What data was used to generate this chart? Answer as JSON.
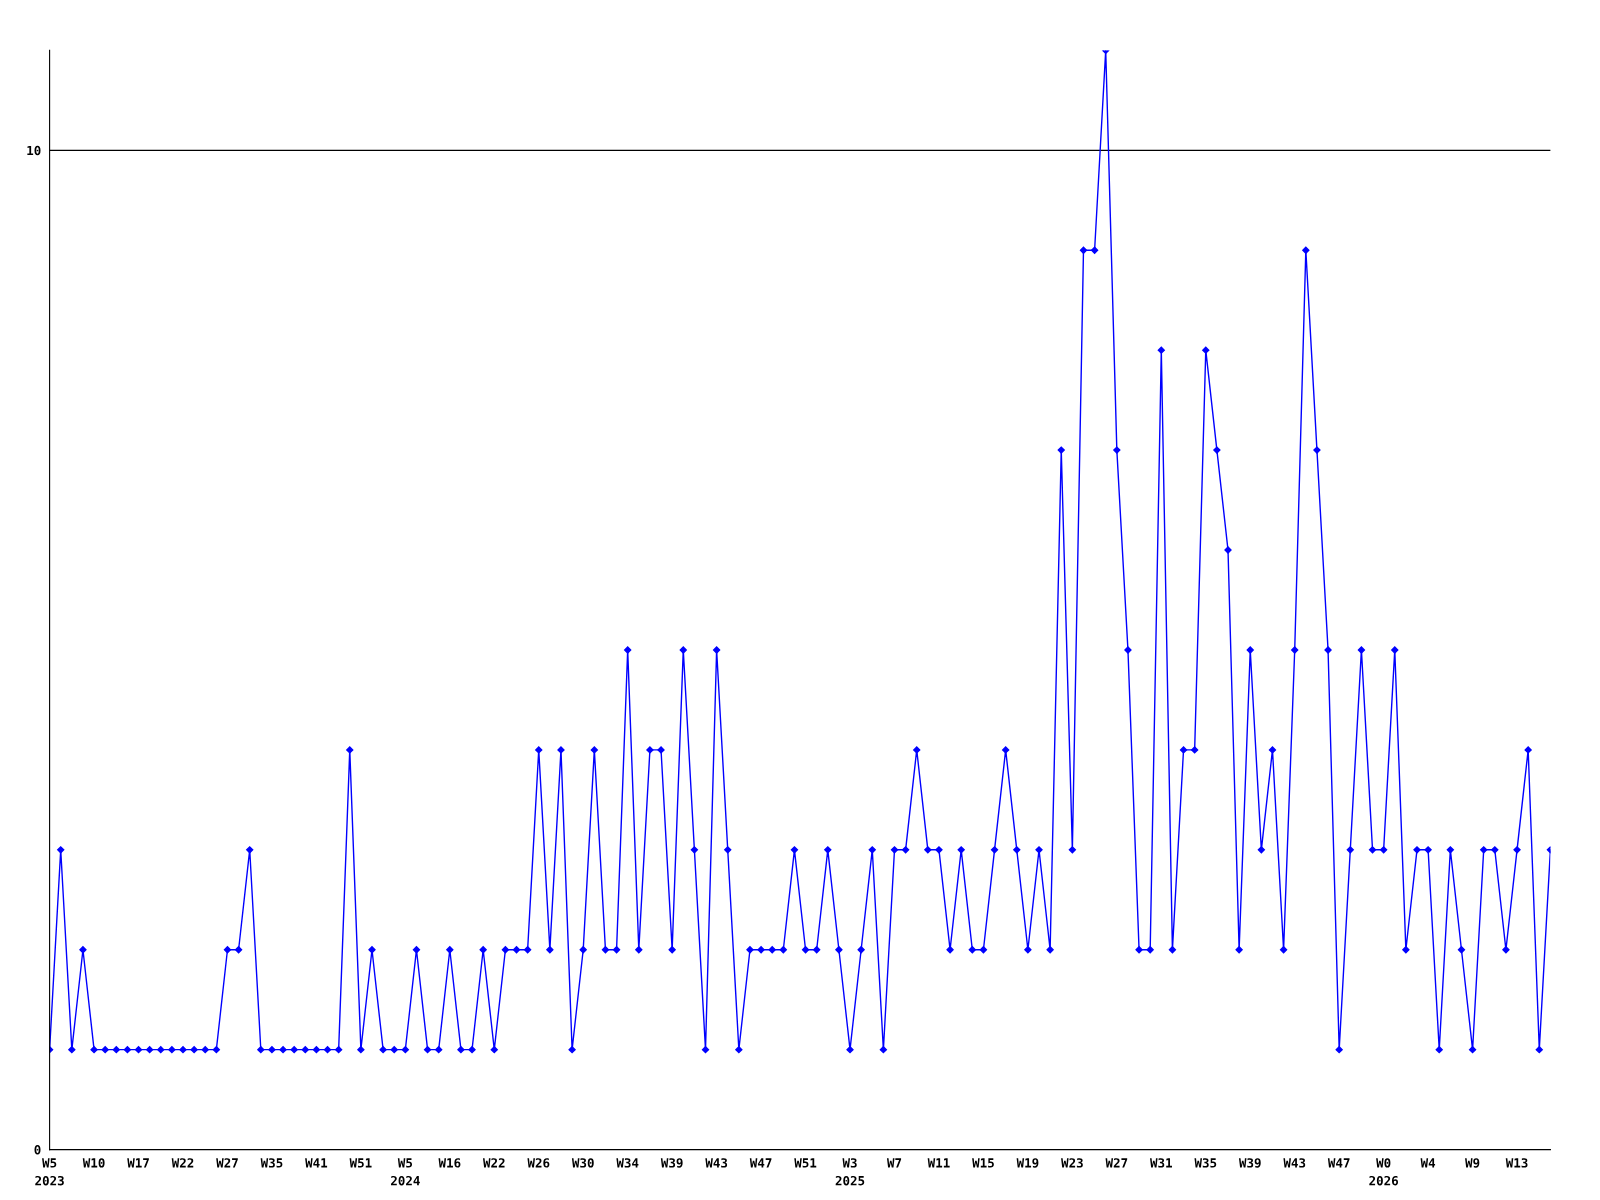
{
  "chart_data": {
    "type": "line",
    "categories": [
      "W5\n2023",
      null,
      null,
      null,
      "W10",
      null,
      null,
      null,
      "W17",
      null,
      null,
      null,
      "W22",
      null,
      null,
      null,
      "W27",
      null,
      null,
      null,
      "W35",
      null,
      null,
      null,
      "W41",
      null,
      null,
      null,
      "W51",
      null,
      null,
      null,
      "W5\n2024",
      null,
      null,
      null,
      "W16",
      null,
      null,
      null,
      "W22",
      null,
      null,
      null,
      "W26",
      null,
      null,
      null,
      "W30",
      null,
      null,
      null,
      "W34",
      null,
      null,
      null,
      "W39",
      null,
      null,
      null,
      "W43",
      null,
      null,
      null,
      "W47",
      null,
      null,
      null,
      "W51",
      null,
      null,
      null,
      "W3\n2025",
      null,
      null,
      null,
      "W7",
      null,
      null,
      null,
      "W11",
      null,
      null,
      null,
      "W15",
      null,
      null,
      null,
      "W19",
      null,
      null,
      null,
      "W23",
      null,
      null,
      null,
      "W27",
      null,
      null,
      null,
      "W31",
      null,
      null,
      null,
      "W35",
      null,
      null,
      null,
      "W39",
      null,
      null,
      null,
      "W43",
      null,
      null,
      null,
      "W47",
      null,
      null,
      null,
      "W0\n2026",
      null,
      null,
      null,
      "W4",
      null,
      null,
      null,
      "W9",
      null,
      null,
      null,
      "W13",
      null,
      null,
      null
    ],
    "series": [
      {
        "color": "#0000ff",
        "values": [
          1,
          3,
          1,
          2,
          1,
          1,
          1,
          1,
          1,
          1,
          1,
          1,
          1,
          1,
          1,
          1,
          2,
          2,
          3,
          1,
          1,
          1,
          1,
          1,
          1,
          1,
          1,
          4,
          1,
          2,
          1,
          1,
          1,
          2,
          1,
          1,
          2,
          1,
          1,
          2,
          1,
          2,
          2,
          2,
          4,
          2,
          4,
          1,
          2,
          4,
          2,
          2,
          5,
          2,
          4,
          4,
          2,
          5,
          3,
          1,
          5,
          3,
          1,
          2,
          2,
          2,
          2,
          3,
          2,
          2,
          3,
          2,
          1,
          2,
          3,
          1,
          3,
          3,
          4,
          3,
          3,
          2,
          3,
          2,
          2,
          3,
          4,
          3,
          2,
          3,
          2,
          7,
          3,
          9,
          9,
          11,
          7,
          5,
          2,
          2,
          8,
          2,
          4,
          4,
          8,
          7,
          6,
          2,
          5,
          3,
          4,
          2,
          5,
          9,
          7,
          5,
          1,
          3,
          5,
          3,
          3,
          5,
          2,
          3,
          3,
          1,
          3,
          2,
          1,
          3,
          3,
          2,
          3,
          4,
          1,
          3
        ]
      }
    ],
    "ylim": [
      0,
      11
    ],
    "yticks": [
      0,
      10
    ],
    "grid": "y",
    "marker": "diamond",
    "line_style": "solid"
  }
}
